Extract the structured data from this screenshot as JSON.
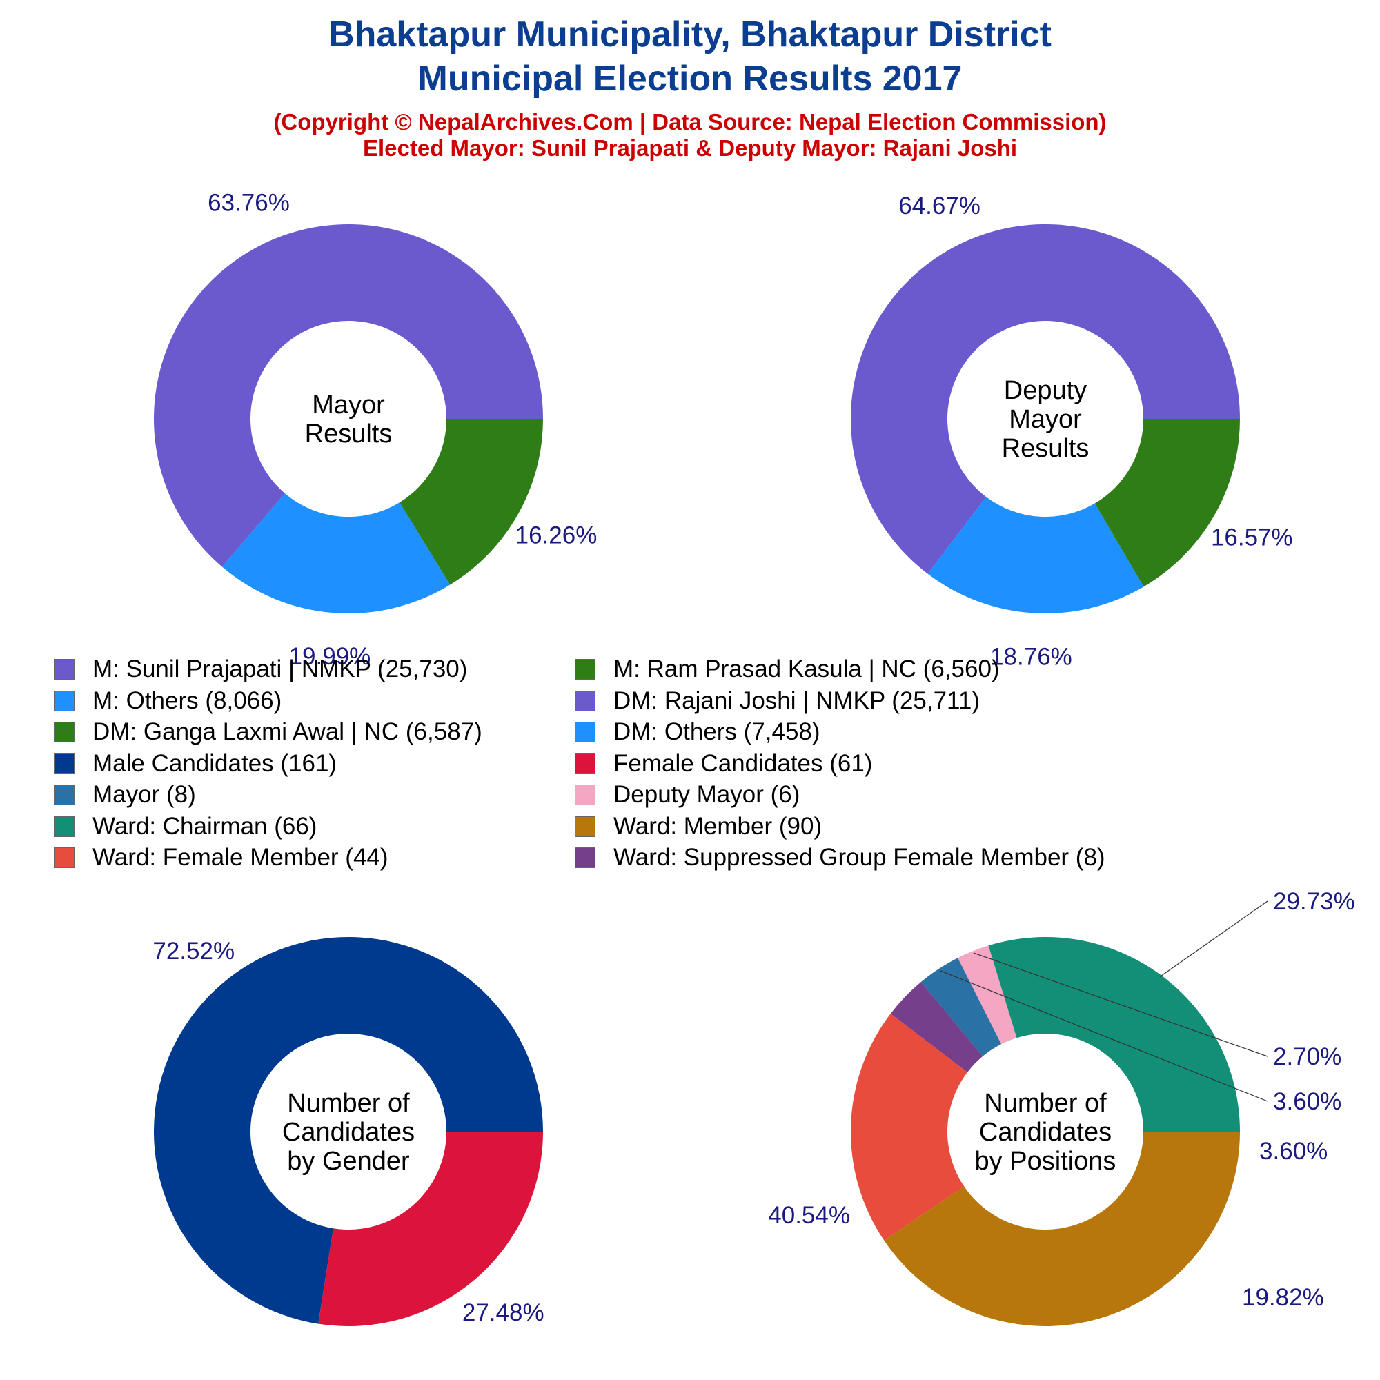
{
  "title": {
    "line1": "Bhaktapur Municipality, Bhaktapur District",
    "line2": "Municipal Election Results 2017",
    "subtitle1": "(Copyright © NepalArchives.Com | Data Source: Nepal Election Commission)",
    "subtitle2": "Elected Mayor: Sunil Prajapati & Deputy Mayor: Rajani Joshi"
  },
  "colors": {
    "title": "#0b3d91",
    "subtitle": "#cc0000",
    "pct_label": "#1a1a80"
  },
  "legend": [
    {
      "label": "M: Sunil Prajapati | NMKP (25,730)",
      "color": "#6a5acd"
    },
    {
      "label": "M: Ram Prasad Kasula | NC (6,560)",
      "color": "#2e7d16"
    },
    {
      "label": "M: Others (8,066)",
      "color": "#1e90ff"
    },
    {
      "label": "DM: Rajani Joshi | NMKP (25,711)",
      "color": "#6a5acd"
    },
    {
      "label": "DM: Ganga Laxmi Awal | NC (6,587)",
      "color": "#2e7d16"
    },
    {
      "label": "DM: Others (7,458)",
      "color": "#1e90ff"
    },
    {
      "label": "Male Candidates (161)",
      "color": "#003a8f"
    },
    {
      "label": "Female Candidates (61)",
      "color": "#dc143c"
    },
    {
      "label": "Mayor (8)",
      "color": "#2a72a6"
    },
    {
      "label": "Deputy Mayor (6)",
      "color": "#f4a6c2"
    },
    {
      "label": "Ward: Chairman (66)",
      "color": "#138f77"
    },
    {
      "label": "Ward: Member (90)",
      "color": "#b8770d"
    },
    {
      "label": "Ward: Female Member (44)",
      "color": "#e74c3c"
    },
    {
      "label": "Ward: Suppressed Group Female Member (8)",
      "color": "#763f8c"
    }
  ],
  "chart_data": [
    {
      "type": "pie",
      "center_label": [
        "Mayor",
        "Results"
      ],
      "slices": [
        {
          "name": "M: Sunil Prajapati | NMKP",
          "value": 25730,
          "pct_label": "63.76%",
          "color": "#6a5acd"
        },
        {
          "name": "M: Others",
          "value": 8066,
          "pct_label": "19.99%",
          "color": "#1e90ff"
        },
        {
          "name": "M: Ram Prasad Kasula | NC",
          "value": 6560,
          "pct_label": "16.26%",
          "color": "#2e7d16"
        }
      ]
    },
    {
      "type": "pie",
      "center_label": [
        "Deputy",
        "Mayor",
        "Results"
      ],
      "slices": [
        {
          "name": "DM: Rajani Joshi | NMKP",
          "value": 25711,
          "pct_label": "64.67%",
          "color": "#6a5acd"
        },
        {
          "name": "DM: Others",
          "value": 7458,
          "pct_label": "18.76%",
          "color": "#1e90ff"
        },
        {
          "name": "DM: Ganga Laxmi Awal | NC",
          "value": 6587,
          "pct_label": "16.57%",
          "color": "#2e7d16"
        }
      ]
    },
    {
      "type": "pie",
      "center_label": [
        "Number of",
        "Candidates",
        "by Gender"
      ],
      "slices": [
        {
          "name": "Male Candidates",
          "value": 161,
          "pct_label": "72.52%",
          "color": "#003a8f"
        },
        {
          "name": "Female Candidates",
          "value": 61,
          "pct_label": "27.48%",
          "color": "#dc143c"
        }
      ]
    },
    {
      "type": "pie",
      "center_label": [
        "Number of",
        "Candidates",
        "by Positions"
      ],
      "slices": [
        {
          "name": "Ward: Chairman",
          "value": 66,
          "pct_label": "29.73%",
          "color": "#138f77"
        },
        {
          "name": "Deputy Mayor",
          "value": 6,
          "pct_label": "2.70%",
          "color": "#f4a6c2"
        },
        {
          "name": "Mayor",
          "value": 8,
          "pct_label": "3.60%",
          "color": "#2a72a6"
        },
        {
          "name": "Ward: Suppressed Group Female Member",
          "value": 8,
          "pct_label": "3.60%",
          "color": "#763f8c"
        },
        {
          "name": "Ward: Female Member",
          "value": 44,
          "pct_label": "19.82%",
          "color": "#e74c3c"
        },
        {
          "name": "Ward: Member",
          "value": 90,
          "pct_label": "40.54%",
          "color": "#b8770d"
        }
      ]
    }
  ]
}
